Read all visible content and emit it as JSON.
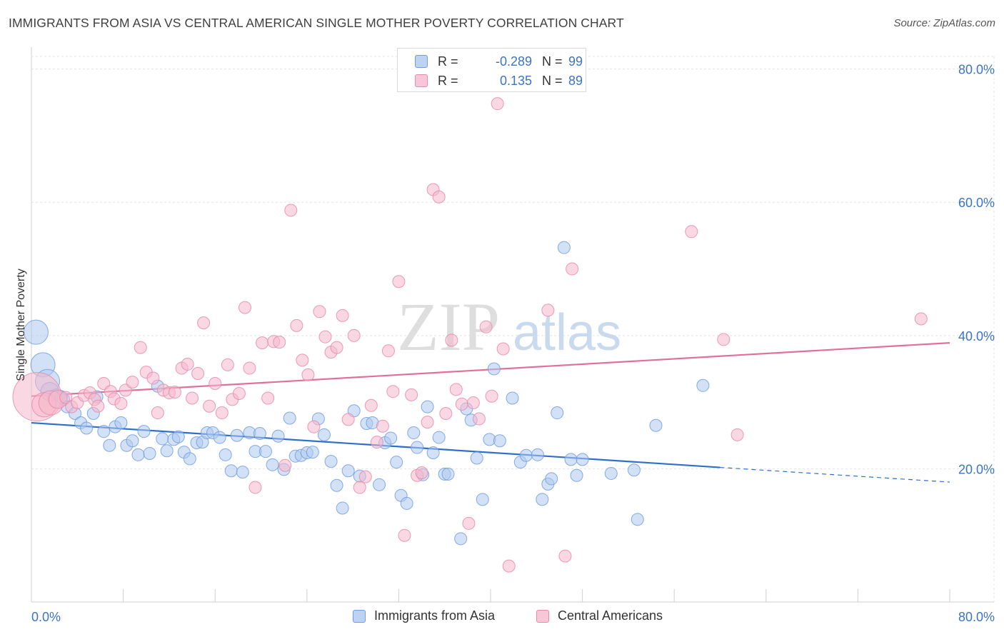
{
  "title": "IMMIGRANTS FROM ASIA VS CENTRAL AMERICAN SINGLE MOTHER POVERTY CORRELATION CHART",
  "source": "Source: ZipAtlas.com",
  "watermark": {
    "zip": "ZIP",
    "atlas": "atlas"
  },
  "colors": {
    "blue_fill": "#aec8ef",
    "blue_stroke": "#6f9ee0",
    "blue_line": "#2f6fcc",
    "pink_fill": "#f5b8cc",
    "pink_stroke": "#e88aa8",
    "pink_line": "#e0709a",
    "axis_label": "#3a74c8",
    "grid": "#e3e3e3"
  },
  "stats": [
    {
      "r_label": "R =",
      "r_value": "-0.289",
      "n_label": "N =",
      "n_value": "99",
      "color": "blue"
    },
    {
      "r_label": "R =",
      "r_value": "0.135",
      "n_label": "N =",
      "n_value": "89",
      "color": "pink"
    }
  ],
  "chart_data": {
    "type": "scatter",
    "title": "IMMIGRANTS FROM ASIA VS CENTRAL AMERICAN SINGLE MOTHER POVERTY CORRELATION CHART",
    "xlabel": "",
    "ylabel": "Single Mother Poverty",
    "xlim": [
      0,
      80
    ],
    "ylim": [
      0,
      82
    ],
    "x_tick_labels": [
      "0.0%",
      "80.0%"
    ],
    "y_ticks": [
      20,
      40,
      60,
      80
    ],
    "y_tick_labels": [
      "20.0%",
      "40.0%",
      "60.0%",
      "80.0%"
    ],
    "grid": true,
    "legend_placement": "bottom",
    "series": [
      {
        "name": "Immigrants from Asia",
        "color": "#aec8ef",
        "trend": {
          "x0": 0,
          "y0": 26.9,
          "x1": 60,
          "y1": 20.2,
          "dashed_to_x": 80,
          "dashed_to_y": 18.0
        },
        "points": [
          [
            0.4,
            40.5,
            2
          ],
          [
            1.0,
            35.6,
            2
          ],
          [
            1.4,
            33.1,
            2
          ],
          [
            1.6,
            31.6,
            1.5
          ],
          [
            2.2,
            30.6,
            1.5
          ],
          [
            2.8,
            30.4,
            1
          ],
          [
            3.1,
            29.3,
            1
          ],
          [
            3.8,
            28.3,
            1
          ],
          [
            4.3,
            26.9,
            1
          ],
          [
            4.8,
            26.1,
            1
          ],
          [
            5.4,
            28.3,
            1
          ],
          [
            5.7,
            30.8,
            1
          ],
          [
            6.3,
            25.6,
            1
          ],
          [
            6.8,
            23.5,
            1
          ],
          [
            7.3,
            26.3,
            1
          ],
          [
            7.8,
            26.9,
            1
          ],
          [
            8.3,
            23.5,
            1
          ],
          [
            8.8,
            24.2,
            1
          ],
          [
            9.3,
            22.1,
            1
          ],
          [
            9.8,
            25.6,
            1
          ],
          [
            10.3,
            22.3,
            1
          ],
          [
            11.0,
            32.4,
            1
          ],
          [
            11.4,
            24.5,
            1
          ],
          [
            11.8,
            22.7,
            1
          ],
          [
            12.4,
            24.4,
            1
          ],
          [
            12.8,
            24.8,
            1
          ],
          [
            13.3,
            22.5,
            1
          ],
          [
            13.8,
            21.5,
            1
          ],
          [
            14.4,
            23.9,
            1
          ],
          [
            14.9,
            24.0,
            1
          ],
          [
            15.3,
            25.4,
            1
          ],
          [
            15.8,
            25.4,
            1
          ],
          [
            16.4,
            24.7,
            1
          ],
          [
            16.9,
            22.1,
            1
          ],
          [
            17.4,
            19.7,
            1
          ],
          [
            17.9,
            25.0,
            1
          ],
          [
            18.4,
            19.5,
            1
          ],
          [
            19.0,
            25.4,
            1
          ],
          [
            19.5,
            22.6,
            1
          ],
          [
            19.9,
            25.3,
            1
          ],
          [
            20.4,
            22.6,
            1
          ],
          [
            21.0,
            20.6,
            1
          ],
          [
            21.5,
            24.9,
            1
          ],
          [
            22.0,
            19.9,
            1
          ],
          [
            22.5,
            27.6,
            1
          ],
          [
            23.0,
            21.9,
            1
          ],
          [
            23.5,
            22.0,
            1
          ],
          [
            24.0,
            22.4,
            1
          ],
          [
            24.5,
            22.5,
            1
          ],
          [
            25.0,
            27.5,
            1
          ],
          [
            25.5,
            25.1,
            1
          ],
          [
            26.1,
            21.1,
            1
          ],
          [
            26.6,
            17.5,
            1
          ],
          [
            27.1,
            14.1,
            1
          ],
          [
            27.6,
            19.7,
            1
          ],
          [
            28.1,
            28.7,
            1
          ],
          [
            28.6,
            18.9,
            1
          ],
          [
            29.2,
            26.8,
            1
          ],
          [
            29.7,
            26.9,
            1
          ],
          [
            30.3,
            17.6,
            1
          ],
          [
            30.8,
            23.9,
            1
          ],
          [
            31.3,
            24.6,
            1
          ],
          [
            31.8,
            21.0,
            1
          ],
          [
            32.2,
            16.0,
            1
          ],
          [
            32.7,
            14.8,
            1
          ],
          [
            33.3,
            25.4,
            1
          ],
          [
            33.6,
            23.2,
            1
          ],
          [
            34.1,
            19.1,
            1
          ],
          [
            34.5,
            29.3,
            1
          ],
          [
            35.0,
            22.4,
            1
          ],
          [
            35.5,
            24.7,
            1
          ],
          [
            36.0,
            19.2,
            1
          ],
          [
            36.3,
            19.2,
            1
          ],
          [
            37.4,
            9.5,
            1
          ],
          [
            37.9,
            29.0,
            1
          ],
          [
            38.3,
            27.3,
            1
          ],
          [
            38.8,
            21.6,
            1
          ],
          [
            39.3,
            15.4,
            1
          ],
          [
            39.9,
            24.4,
            1
          ],
          [
            40.3,
            35.0,
            1
          ],
          [
            40.8,
            24.2,
            1
          ],
          [
            41.9,
            30.6,
            1
          ],
          [
            42.6,
            21.0,
            1
          ],
          [
            43.1,
            22.0,
            1
          ],
          [
            44.1,
            22.1,
            1
          ],
          [
            44.5,
            15.4,
            1
          ],
          [
            45.0,
            17.7,
            1
          ],
          [
            45.3,
            18.5,
            1
          ],
          [
            45.8,
            28.4,
            1
          ],
          [
            46.4,
            53.2,
            1
          ],
          [
            47.0,
            21.4,
            1
          ],
          [
            47.5,
            19.0,
            1
          ],
          [
            48.0,
            21.4,
            1
          ],
          [
            50.5,
            19.3,
            1
          ],
          [
            52.5,
            19.8,
            1
          ],
          [
            52.8,
            12.4,
            1
          ],
          [
            54.4,
            26.5,
            1
          ],
          [
            58.5,
            32.5,
            1
          ],
          [
            2.6,
            30.8,
            1
          ]
        ]
      },
      {
        "name": "Central Americans",
        "color": "#f5b8cc",
        "trend": {
          "x0": 0,
          "y0": 30.9,
          "x1": 80,
          "y1": 38.9
        },
        "points": [
          [
            0.5,
            30.8,
            4
          ],
          [
            1.1,
            29.6,
            2
          ],
          [
            1.7,
            29.9,
            2
          ],
          [
            2.3,
            30.4,
            1.5
          ],
          [
            3.0,
            30.7,
            1
          ],
          [
            3.5,
            29.3,
            1
          ],
          [
            4.0,
            29.9,
            1
          ],
          [
            4.6,
            31.0,
            1
          ],
          [
            5.1,
            31.4,
            1
          ],
          [
            5.5,
            30.4,
            1
          ],
          [
            5.8,
            29.4,
            1
          ],
          [
            6.3,
            32.8,
            1
          ],
          [
            6.9,
            31.6,
            1
          ],
          [
            7.2,
            30.5,
            1
          ],
          [
            7.8,
            29.8,
            1
          ],
          [
            8.2,
            31.8,
            1
          ],
          [
            8.8,
            33.0,
            1
          ],
          [
            9.5,
            38.2,
            1
          ],
          [
            10.0,
            34.5,
            1
          ],
          [
            10.6,
            33.6,
            1
          ],
          [
            11.0,
            28.4,
            1
          ],
          [
            11.5,
            31.8,
            1
          ],
          [
            12.0,
            31.4,
            1
          ],
          [
            12.5,
            31.5,
            1
          ],
          [
            13.1,
            35.1,
            1
          ],
          [
            13.6,
            35.7,
            1
          ],
          [
            14.0,
            30.6,
            1
          ],
          [
            14.5,
            34.3,
            1
          ],
          [
            15.0,
            41.9,
            1
          ],
          [
            15.5,
            29.4,
            1
          ],
          [
            16.0,
            32.8,
            1
          ],
          [
            16.6,
            28.4,
            1
          ],
          [
            17.1,
            35.6,
            1
          ],
          [
            17.5,
            30.4,
            1
          ],
          [
            18.1,
            31.3,
            1
          ],
          [
            18.6,
            44.2,
            1
          ],
          [
            19.0,
            35.1,
            1
          ],
          [
            19.5,
            17.2,
            1
          ],
          [
            20.1,
            38.9,
            1
          ],
          [
            20.6,
            30.6,
            1
          ],
          [
            21.1,
            39.1,
            1
          ],
          [
            21.6,
            39.0,
            1
          ],
          [
            22.1,
            20.5,
            1
          ],
          [
            22.6,
            58.8,
            1
          ],
          [
            23.1,
            41.5,
            1
          ],
          [
            23.6,
            36.3,
            1
          ],
          [
            24.1,
            34.1,
            1
          ],
          [
            24.6,
            26.3,
            1
          ],
          [
            25.1,
            43.6,
            1
          ],
          [
            25.6,
            39.8,
            1
          ],
          [
            26.1,
            37.5,
            1
          ],
          [
            26.6,
            38.2,
            1
          ],
          [
            27.1,
            43.0,
            1
          ],
          [
            27.6,
            27.4,
            1
          ],
          [
            28.1,
            40.0,
            1
          ],
          [
            28.6,
            17.2,
            1
          ],
          [
            29.1,
            18.8,
            1
          ],
          [
            29.6,
            29.5,
            1
          ],
          [
            30.1,
            24.0,
            1
          ],
          [
            30.6,
            26.4,
            1
          ],
          [
            31.1,
            37.7,
            1
          ],
          [
            31.5,
            31.6,
            1
          ],
          [
            32.0,
            48.1,
            1
          ],
          [
            32.5,
            10.0,
            1
          ],
          [
            33.1,
            31.1,
            1
          ],
          [
            33.6,
            19.0,
            1
          ],
          [
            34.0,
            19.4,
            1
          ],
          [
            34.5,
            27.0,
            1
          ],
          [
            35.0,
            61.9,
            1
          ],
          [
            35.5,
            60.8,
            1
          ],
          [
            36.1,
            28.3,
            1
          ],
          [
            36.6,
            39.3,
            1
          ],
          [
            37.0,
            31.9,
            1
          ],
          [
            37.5,
            29.7,
            1
          ],
          [
            38.1,
            11.8,
            1
          ],
          [
            38.5,
            29.9,
            1
          ],
          [
            39.0,
            27.5,
            1
          ],
          [
            39.6,
            41.3,
            1
          ],
          [
            40.1,
            30.9,
            1
          ],
          [
            40.6,
            74.8,
            1
          ],
          [
            41.1,
            38.0,
            1
          ],
          [
            41.6,
            5.4,
            1
          ],
          [
            45.0,
            43.8,
            1
          ],
          [
            46.5,
            6.9,
            1
          ],
          [
            47.1,
            50.0,
            1
          ],
          [
            57.5,
            55.6,
            1
          ],
          [
            60.3,
            39.4,
            1
          ],
          [
            61.5,
            25.1,
            1
          ],
          [
            77.5,
            42.5,
            1
          ]
        ]
      }
    ]
  },
  "legend": [
    {
      "label": "Immigrants from Asia",
      "color": "blue"
    },
    {
      "label": "Central Americans",
      "color": "pink"
    }
  ]
}
